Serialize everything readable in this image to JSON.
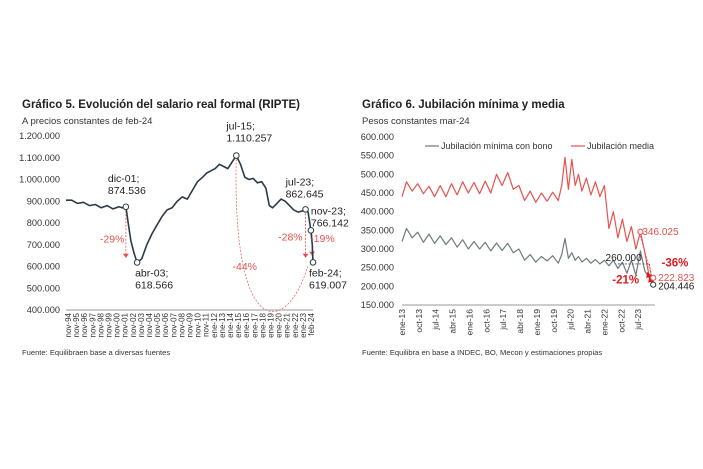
{
  "charts": [
    {
      "title": "Gráfico 5. Evolución del salario real formal (RIPTE)",
      "subtitle": "A precios constantes de feb-24",
      "source": "Fuente: Equilibraen base a diversas fuentes",
      "chart_data": {
        "type": "line",
        "title": "Gráfico 5. Evolución del salario real formal (RIPTE)",
        "subtitle": "A precios constantes de feb-24",
        "ylim": [
          400000,
          1200000
        ],
        "yticks": [
          "400.000",
          "500.000",
          "600.000",
          "700.000",
          "800.000",
          "900.000",
          "1.000.000",
          "1.100.000",
          "1.200.000"
        ],
        "ytick_values": [
          400000,
          500000,
          600000,
          700000,
          800000,
          900000,
          1000000,
          1100000,
          1200000
        ],
        "xlim": [
          1994.83,
          2024.08
        ],
        "xticks": [
          "nov-94",
          "nov-95",
          "nov-96",
          "nov-97",
          "nov-98",
          "nov-99",
          "nov-00",
          "nov-01",
          "nov-02",
          "nov-03",
          "nov-04",
          "nov-05",
          "nov-06",
          "nov-07",
          "nov-08",
          "nov-09",
          "nov-10",
          "nov-11",
          "ene-12",
          "ene-13",
          "ene-14",
          "ene-15",
          "ene-16",
          "ene-17",
          "ene-18",
          "ene-19",
          "ene-20",
          "ene-21",
          "ene-22",
          "ene-23",
          "feb-24"
        ],
        "grid": false,
        "series": [
          {
            "color": "#2d3a45",
            "x": [
              1994.83,
              1995.5,
              1996.2,
              1996.9,
              1997.6,
              1998.3,
              1999.0,
              1999.7,
              2000.4,
              2001.1,
              2001.5,
              2001.92,
              2002.2,
              2002.5,
              2002.9,
              2003.25,
              2003.8,
              2004.4,
              2005.0,
              2005.6,
              2006.2,
              2006.8,
              2007.4,
              2008.0,
              2008.6,
              2009.2,
              2009.8,
              2010.4,
              2011.0,
              2011.5,
              2012.0,
              2012.5,
              2013.0,
              2013.5,
              2014.0,
              2014.5,
              2015.0,
              2015.5,
              2016.0,
              2016.5,
              2017.0,
              2017.5,
              2018.0,
              2018.5,
              2018.9,
              2019.3,
              2019.8,
              2020.3,
              2020.8,
              2021.3,
              2021.8,
              2022.3,
              2022.8,
              2023.2,
              2023.5,
              2023.83,
              2024.0,
              2024.08
            ],
            "y": [
              905000,
              905000,
              890000,
              895000,
              880000,
              885000,
              870000,
              880000,
              865000,
              875000,
              870000,
              874536,
              800000,
              720000,
              660000,
              618566,
              635000,
              700000,
              750000,
              790000,
              830000,
              860000,
              870000,
              900000,
              920000,
              910000,
              950000,
              990000,
              1010000,
              1030000,
              1040000,
              1050000,
              1070000,
              1060000,
              1050000,
              1080000,
              1110257,
              1070000,
              1010000,
              1000000,
              1005000,
              985000,
              990000,
              960000,
              880000,
              870000,
              890000,
              910000,
              900000,
              880000,
              860000,
              850000,
              855000,
              862645,
              850000,
              766142,
              700000,
              619007
            ]
          }
        ],
        "annotations": [
          {
            "label": "dic-01;",
            "value_label": "874.536",
            "x": 2001.92,
            "y": 874536
          },
          {
            "label": "abr-03;",
            "value_label": "618.566",
            "x": 2003.25,
            "y": 618566
          },
          {
            "label": "jul-15;",
            "value_label": "1.110.257",
            "x": 2015.0,
            "y": 1110257
          },
          {
            "label": "jul-23;",
            "value_label": "862.645",
            "x": 2023.2,
            "y": 862645
          },
          {
            "label": "nov-23;",
            "value_label": "766.142",
            "x": 2023.83,
            "y": 766142
          },
          {
            "label": "feb-24;",
            "value_label": "619.007",
            "x": 2024.08,
            "y": 619007
          }
        ],
        "changes": [
          {
            "label": "-29%",
            "x": 2000.3,
            "y": 710000
          },
          {
            "label": "-44%",
            "x": 2016.0,
            "y": 585000
          },
          {
            "label": "-28%",
            "x": 2021.4,
            "y": 720000
          },
          {
            "label": "-19%",
            "x": 2025.2,
            "y": 712000
          }
        ]
      }
    },
    {
      "title": "Gráfico 6. Jubilación mínima y media",
      "subtitle": "Pesos constantes mar-24",
      "source": "Fuente: Equilibra en base a INDEC, BO, Mecon y estimaciones propias",
      "chart_data": {
        "type": "line",
        "title": "Gráfico 6. Jubilación mínima y media",
        "subtitle": "Pesos constantes mar-24",
        "ylim": [
          150000,
          600000
        ],
        "yticks": [
          "150.000",
          "200.000",
          "250.000",
          "300.000",
          "350.000",
          "400.000",
          "450.000",
          "500.000",
          "550.000",
          "600.000"
        ],
        "ytick_values": [
          150000,
          200000,
          250000,
          300000,
          350000,
          400000,
          450000,
          500000,
          550000,
          600000
        ],
        "xlim": [
          2013.0,
          2024.25
        ],
        "xticks": [
          "ene-13",
          "oct-13",
          "jul-14",
          "abr-15",
          "ene-16",
          "oct-16",
          "jul-17",
          "abr-18",
          "ene-19",
          "oct-19",
          "jul-20",
          "abr-21",
          "ene-22",
          "oct-22",
          "jul-23"
        ],
        "xtick_values": [
          2013.0,
          2013.75,
          2014.5,
          2015.25,
          2016.0,
          2016.75,
          2017.5,
          2018.25,
          2019.0,
          2019.75,
          2020.5,
          2021.25,
          2022.0,
          2022.75,
          2023.5
        ],
        "legend": "top",
        "grid": false,
        "series": [
          {
            "name": "Jubilación mínima con bono",
            "color": "#6e7a80",
            "x": [
              2013.0,
              2013.2,
              2013.45,
              2013.7,
              2013.95,
              2014.2,
              2014.45,
              2014.7,
              2014.95,
              2015.2,
              2015.45,
              2015.7,
              2015.95,
              2016.2,
              2016.45,
              2016.7,
              2016.95,
              2017.2,
              2017.45,
              2017.7,
              2017.95,
              2018.2,
              2018.45,
              2018.7,
              2018.95,
              2019.2,
              2019.45,
              2019.7,
              2019.95,
              2020.1,
              2020.25,
              2020.4,
              2020.55,
              2020.7,
              2020.85,
              2021.0,
              2021.2,
              2021.4,
              2021.6,
              2021.8,
              2022.0,
              2022.2,
              2022.4,
              2022.6,
              2022.8,
              2023.0,
              2023.2,
              2023.4,
              2023.6,
              2023.8,
              2024.0,
              2024.17
            ],
            "y": [
              320000,
              355000,
              330000,
              345000,
              318000,
              340000,
              315000,
              335000,
              312000,
              330000,
              305000,
              325000,
              300000,
              320000,
              300000,
              318000,
              295000,
              316000,
              296000,
              315000,
              290000,
              300000,
              270000,
              285000,
              265000,
              280000,
              268000,
              282000,
              262000,
              285000,
              328000,
              275000,
              290000,
              270000,
              280000,
              265000,
              275000,
              262000,
              272000,
              260000,
              270000,
              255000,
              270000,
              248000,
              265000,
              235000,
              270000,
              230000,
              295000,
              240000,
              222823,
              204446
            ]
          },
          {
            "name": "Jubilación media",
            "color": "#e8514e",
            "x": [
              2013.0,
              2013.2,
              2013.45,
              2013.7,
              2013.95,
              2014.2,
              2014.45,
              2014.7,
              2014.95,
              2015.2,
              2015.45,
              2015.7,
              2015.95,
              2016.2,
              2016.45,
              2016.7,
              2016.95,
              2017.2,
              2017.45,
              2017.7,
              2017.95,
              2018.2,
              2018.45,
              2018.7,
              2018.95,
              2019.2,
              2019.45,
              2019.7,
              2019.95,
              2020.1,
              2020.25,
              2020.4,
              2020.55,
              2020.7,
              2020.85,
              2021.0,
              2021.2,
              2021.4,
              2021.6,
              2021.8,
              2022.0,
              2022.2,
              2022.4,
              2022.6,
              2022.8,
              2023.0,
              2023.2,
              2023.4,
              2023.6,
              2023.8,
              2024.0,
              2024.17
            ],
            "y": [
              440000,
              480000,
              455000,
              475000,
              448000,
              468000,
              440000,
              470000,
              440000,
              475000,
              445000,
              480000,
              450000,
              478000,
              448000,
              482000,
              450000,
              500000,
              470000,
              505000,
              460000,
              470000,
              430000,
              455000,
              425000,
              450000,
              428000,
              452000,
              430000,
              470000,
              545000,
              460000,
              540000,
              470000,
              500000,
              455000,
              490000,
              445000,
              480000,
              440000,
              470000,
              355000,
              400000,
              330000,
              380000,
              320000,
              360000,
              300000,
              346025,
              290000,
              222823,
              222823
            ]
          }
        ],
        "annotations": [
          {
            "label": "346.025",
            "x": 2023.6,
            "y": 346025,
            "color": "#e8514e"
          },
          {
            "label": "260.000",
            "x": 2022.9,
            "y": 260000,
            "color": "#222222"
          },
          {
            "label": "222.823",
            "x": 2024.17,
            "y": 222823,
            "color": "#e8514e"
          },
          {
            "label": "204.446",
            "x": 2024.17,
            "y": 204446,
            "color": "#222222"
          }
        ],
        "changes": [
          {
            "label": "-36%",
            "x": 2024.45,
            "y": 258000,
            "color": "#e01b1b"
          },
          {
            "label": "-21%",
            "x": 2022.9,
            "y": 215000,
            "color": "#e01b1b"
          }
        ]
      }
    }
  ]
}
